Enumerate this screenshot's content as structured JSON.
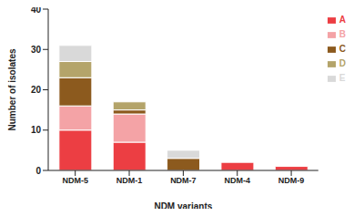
{
  "chart_data": {
    "type": "bar",
    "stacked": true,
    "x_label": "NDM variants",
    "y_label": "Number of isolates",
    "categories": [
      "NDM-5",
      "NDM-1",
      "NDM-7",
      "NDM-4",
      "NDM-9"
    ],
    "series": [
      {
        "name": "A",
        "color": "#ec3e43",
        "values": [
          10,
          7,
          0,
          2,
          1
        ]
      },
      {
        "name": "B",
        "color": "#f4a3a6",
        "values": [
          6,
          7,
          0,
          0,
          0
        ]
      },
      {
        "name": "C",
        "color": "#8c5a1e",
        "values": [
          7,
          1,
          3,
          0,
          0
        ]
      },
      {
        "name": "D",
        "color": "#b4a46a",
        "values": [
          4,
          2,
          0,
          0,
          0
        ]
      },
      {
        "name": "E",
        "color": "#d9d9d9",
        "values": [
          4,
          0,
          2,
          0,
          0
        ]
      }
    ],
    "ylim": [
      0,
      40
    ],
    "yticks": [
      0,
      10,
      20,
      30,
      40
    ],
    "grid": false,
    "legend": "top-right"
  }
}
